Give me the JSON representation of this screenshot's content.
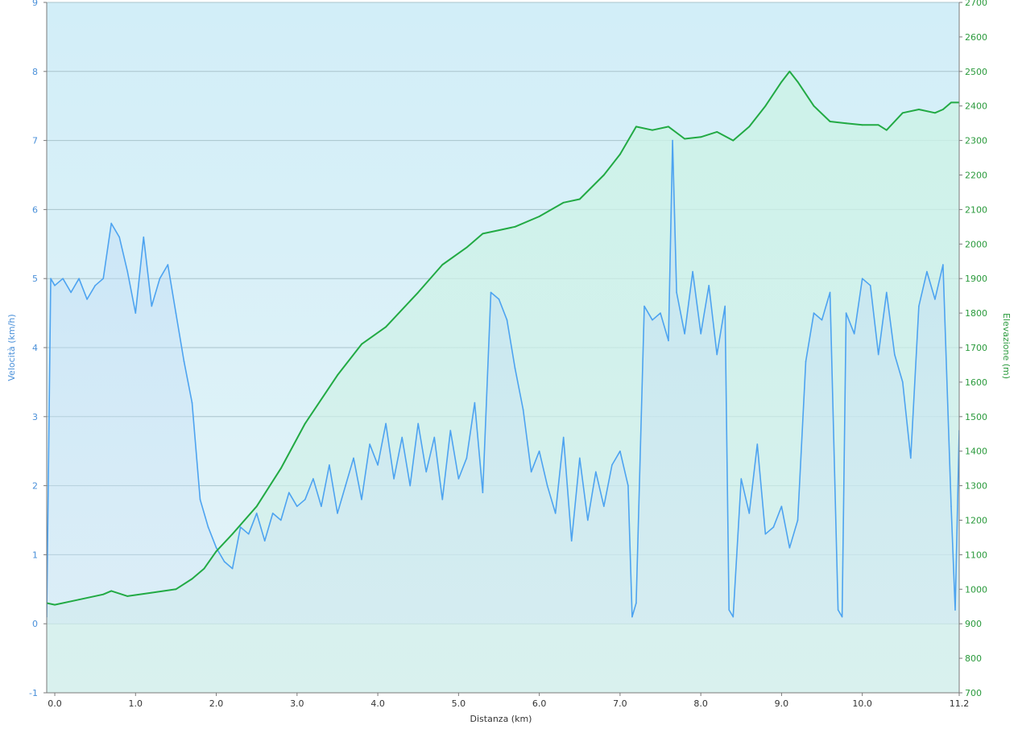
{
  "chart_data": {
    "type": "line",
    "title": "",
    "xlabel": "Distanza  (km)",
    "ylabel_left": "Velocità (km/h)",
    "ylabel_right": "Elevazione (m)",
    "xlim": [
      -0.1,
      11.2
    ],
    "ylim_left": [
      -1,
      9
    ],
    "ylim_right": [
      700,
      2700
    ],
    "x_ticks": [
      0.0,
      1.0,
      2.0,
      3.0,
      4.0,
      5.0,
      6.0,
      7.0,
      8.0,
      9.0,
      10.0,
      11.2
    ],
    "x_tick_labels": [
      "0.0",
      "1.0",
      "2.0",
      "3.0",
      "4.0",
      "5.0",
      "6.0",
      "7.0",
      "8.0",
      "9.0",
      "10.0",
      "11.2"
    ],
    "y_ticks_left": [
      -1,
      0,
      1,
      2,
      3,
      4,
      5,
      6,
      7,
      8,
      9
    ],
    "y_tick_labels_left": [
      "-1",
      "0",
      "1",
      "2",
      "3",
      "4",
      "5",
      "6",
      "7",
      "8",
      "9"
    ],
    "y_ticks_right": [
      700,
      800,
      900,
      1000,
      1100,
      1200,
      1300,
      1400,
      1500,
      1600,
      1700,
      1800,
      1900,
      2000,
      2100,
      2200,
      2300,
      2400,
      2500,
      2600,
      2700
    ],
    "y_tick_labels_right": [
      "700",
      "800",
      "900",
      "1000",
      "1100",
      "1200",
      "1300",
      "1400",
      "1500",
      "1600",
      "1700",
      "1800",
      "1900",
      "2000",
      "2100",
      "2200",
      "2300",
      "2400",
      "2500",
      "2600",
      "2700"
    ],
    "grid": "horizontal",
    "legend": "none",
    "series": [
      {
        "axis": "right",
        "color": "#22aa44",
        "x": [
          -0.1,
          0.0,
          0.3,
          0.6,
          0.7,
          0.9,
          1.2,
          1.5,
          1.7,
          1.85,
          2.0,
          2.2,
          2.5,
          2.8,
          3.1,
          3.5,
          3.8,
          4.1,
          4.5,
          4.8,
          5.1,
          5.3,
          5.5,
          5.7,
          6.0,
          6.3,
          6.5,
          6.8,
          7.0,
          7.2,
          7.4,
          7.6,
          7.8,
          8.0,
          8.2,
          8.4,
          8.6,
          8.8,
          9.0,
          9.1,
          9.2,
          9.4,
          9.6,
          9.8,
          10.0,
          10.2,
          10.3,
          10.5,
          10.7,
          10.9,
          11.0,
          11.1,
          11.2
        ],
        "y": [
          960,
          955,
          970,
          985,
          995,
          980,
          990,
          1000,
          1030,
          1060,
          1110,
          1160,
          1240,
          1350,
          1480,
          1620,
          1710,
          1760,
          1860,
          1940,
          1990,
          2030,
          2040,
          2050,
          2080,
          2120,
          2130,
          2200,
          2260,
          2340,
          2330,
          2340,
          2305,
          2310,
          2325,
          2300,
          2340,
          2400,
          2470,
          2500,
          2470,
          2400,
          2355,
          2350,
          2345,
          2345,
          2330,
          2380,
          2390,
          2380,
          2390,
          2410,
          2410
        ]
      },
      {
        "axis": "left",
        "color": "#4da3f0",
        "x": [
          -0.1,
          -0.05,
          0.0,
          0.1,
          0.2,
          0.3,
          0.4,
          0.5,
          0.6,
          0.7,
          0.8,
          0.9,
          1.0,
          1.1,
          1.2,
          1.3,
          1.4,
          1.5,
          1.6,
          1.7,
          1.8,
          1.9,
          2.0,
          2.1,
          2.2,
          2.3,
          2.4,
          2.5,
          2.6,
          2.7,
          2.8,
          2.9,
          3.0,
          3.1,
          3.2,
          3.3,
          3.4,
          3.5,
          3.6,
          3.7,
          3.8,
          3.9,
          4.0,
          4.1,
          4.2,
          4.3,
          4.4,
          4.5,
          4.6,
          4.7,
          4.8,
          4.9,
          5.0,
          5.1,
          5.2,
          5.3,
          5.4,
          5.5,
          5.6,
          5.7,
          5.8,
          5.9,
          6.0,
          6.1,
          6.2,
          6.3,
          6.4,
          6.5,
          6.6,
          6.7,
          6.8,
          6.9,
          7.0,
          7.1,
          7.15,
          7.2,
          7.3,
          7.4,
          7.5,
          7.6,
          7.65,
          7.7,
          7.8,
          7.9,
          8.0,
          8.1,
          8.2,
          8.3,
          8.35,
          8.4,
          8.5,
          8.6,
          8.7,
          8.8,
          8.9,
          9.0,
          9.1,
          9.2,
          9.3,
          9.4,
          9.5,
          9.6,
          9.7,
          9.75,
          9.8,
          9.9,
          10.0,
          10.1,
          10.2,
          10.3,
          10.4,
          10.5,
          10.6,
          10.7,
          10.8,
          10.9,
          11.0,
          11.1,
          11.15,
          11.2
        ],
        "y": [
          0.1,
          5.0,
          4.9,
          5.0,
          4.8,
          5.0,
          4.7,
          4.9,
          5.0,
          5.8,
          5.6,
          5.1,
          4.5,
          5.6,
          4.6,
          5.0,
          5.2,
          4.5,
          3.8,
          3.2,
          1.8,
          1.4,
          1.1,
          0.9,
          0.8,
          1.4,
          1.3,
          1.6,
          1.2,
          1.6,
          1.5,
          1.9,
          1.7,
          1.8,
          2.1,
          1.7,
          2.3,
          1.6,
          2.0,
          2.4,
          1.8,
          2.6,
          2.3,
          2.9,
          2.1,
          2.7,
          2.0,
          2.9,
          2.2,
          2.7,
          1.8,
          2.8,
          2.1,
          2.4,
          3.2,
          1.9,
          4.8,
          4.7,
          4.4,
          3.7,
          3.1,
          2.2,
          2.5,
          2.0,
          1.6,
          2.7,
          1.2,
          2.4,
          1.5,
          2.2,
          1.7,
          2.3,
          2.5,
          2.0,
          0.1,
          0.3,
          4.6,
          4.4,
          4.5,
          4.1,
          7.0,
          4.8,
          4.2,
          5.1,
          4.2,
          4.9,
          3.9,
          4.6,
          0.2,
          0.1,
          2.1,
          1.6,
          2.6,
          1.3,
          1.4,
          1.7,
          1.1,
          1.5,
          3.8,
          4.5,
          4.4,
          4.8,
          0.2,
          0.1,
          4.5,
          4.2,
          5.0,
          4.9,
          3.9,
          4.8,
          3.9,
          3.5,
          2.4,
          4.6,
          5.1,
          4.7,
          5.2,
          1.7,
          0.2,
          2.8
        ]
      }
    ]
  }
}
